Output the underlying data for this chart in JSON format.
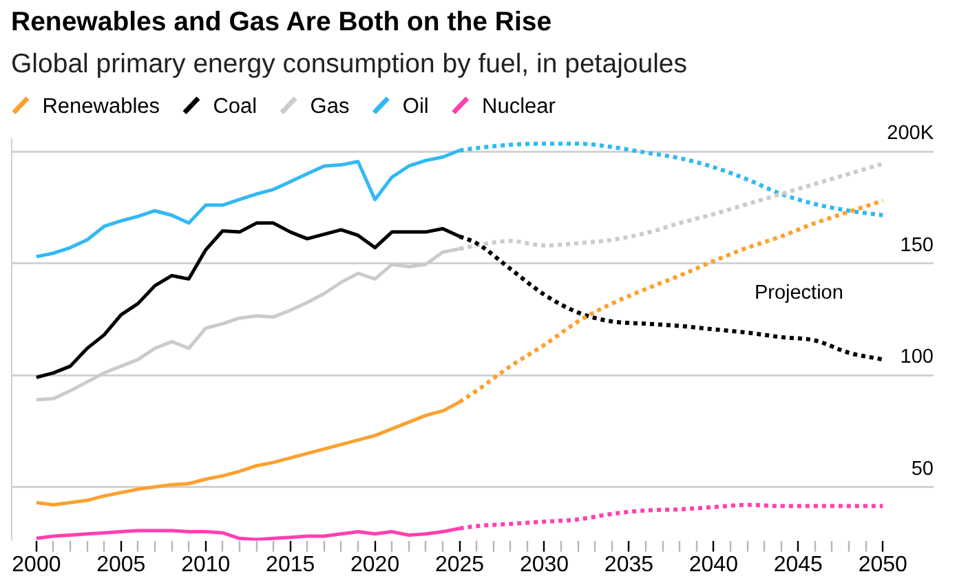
{
  "chart_data": {
    "type": "line",
    "title": "Renewables and Gas Are Both on the Rise",
    "subtitle": "Global primary energy consumption by fuel, in petajoules",
    "xlim": [
      1998.5,
      2053
    ],
    "xticks": [
      2000,
      {
        "value": 2001,
        "label": null
      },
      {
        "value": 2002,
        "label": null
      },
      {
        "value": 2003,
        "label": null
      },
      {
        "value": 2004,
        "label": null
      },
      2005,
      {
        "value": 2006,
        "label": null
      },
      {
        "value": 2007,
        "label": null
      },
      {
        "value": 2008,
        "label": null
      },
      {
        "value": 2009,
        "label": null
      },
      2010,
      {
        "value": 2011,
        "label": null
      },
      {
        "value": 2012,
        "label": null
      },
      {
        "value": 2013,
        "label": null
      },
      {
        "value": 2014,
        "label": null
      },
      2015,
      {
        "value": 2016,
        "label": null
      },
      {
        "value": 2017,
        "label": null
      },
      {
        "value": 2018,
        "label": null
      },
      {
        "value": 2019,
        "label": null
      },
      2020,
      {
        "value": 2021,
        "label": null
      },
      {
        "value": 2022,
        "label": null
      },
      {
        "value": 2023,
        "label": null
      },
      {
        "value": 2024,
        "label": null
      },
      2025,
      {
        "value": 2026,
        "label": null
      },
      {
        "value": 2027,
        "label": null
      },
      {
        "value": 2028,
        "label": null
      },
      {
        "value": 2029,
        "label": null
      },
      2030,
      {
        "value": 2031,
        "label": null
      },
      {
        "value": 2032,
        "label": null
      },
      {
        "value": 2033,
        "label": null
      },
      {
        "value": 2034,
        "label": null
      },
      2035,
      {
        "value": 2036,
        "label": null
      },
      {
        "value": 2037,
        "label": null
      },
      {
        "value": 2038,
        "label": null
      },
      {
        "value": 2039,
        "label": null
      },
      2040,
      {
        "value": 2041,
        "label": null
      },
      {
        "value": 2042,
        "label": null
      },
      {
        "value": 2043,
        "label": null
      },
      {
        "value": 2044,
        "label": null
      },
      2045,
      {
        "value": 2046,
        "label": null
      },
      {
        "value": 2047,
        "label": null
      },
      {
        "value": 2048,
        "label": null
      },
      {
        "value": 2049,
        "label": null
      },
      2050
    ],
    "ylim": [
      26,
      206
    ],
    "yticks": [
      50,
      100,
      150,
      {
        "value": 200,
        "label": "200K"
      }
    ],
    "grid": "y",
    "legend": "top left",
    "marker": "none",
    "annotations": [
      "Projection"
    ],
    "series": [
      {
        "name": "Renewables",
        "color": "#fca130",
        "line_style": "solid",
        "x": [
          2000,
          2001,
          2002,
          2003,
          2004,
          2005,
          2006,
          2007,
          2008,
          2009,
          2010,
          2011,
          2012,
          2013,
          2014,
          2015,
          2016,
          2017,
          2018,
          2019,
          2020,
          2021,
          2022,
          2023,
          2024,
          2025
        ],
        "values": [
          43,
          42,
          43,
          44,
          46,
          47.5,
          49,
          50,
          51,
          51.5,
          53.5,
          55,
          57,
          59.5,
          61,
          63,
          65,
          67,
          69,
          71,
          73,
          76,
          79,
          82,
          84,
          88
        ]
      },
      {
        "name": "Coal",
        "color": "#000000",
        "line_style": "solid",
        "x": [
          2000,
          2001,
          2002,
          2003,
          2004,
          2005,
          2006,
          2007,
          2008,
          2009,
          2010,
          2011,
          2012,
          2013,
          2014,
          2015,
          2016,
          2017,
          2018,
          2019,
          2020,
          2021,
          2022,
          2023,
          2024,
          2025
        ],
        "values": [
          99,
          101,
          104,
          112,
          118,
          127,
          132,
          140,
          144.5,
          143,
          156,
          164.5,
          164,
          168,
          168,
          164,
          161,
          163,
          165,
          162.5,
          157,
          164,
          164,
          164,
          165.5,
          162
        ]
      },
      {
        "name": "Gas",
        "color": "#cbcbcb",
        "line_style": "solid",
        "x": [
          2000,
          2001,
          2002,
          2003,
          2004,
          2005,
          2006,
          2007,
          2008,
          2009,
          2010,
          2011,
          2012,
          2013,
          2014,
          2015,
          2016,
          2017,
          2018,
          2019,
          2020,
          2021,
          2022,
          2023,
          2024,
          2025
        ],
        "values": [
          89,
          89.5,
          93,
          97,
          101,
          104,
          107,
          112,
          115,
          112,
          121,
          123,
          125.5,
          126.5,
          126,
          129,
          132.5,
          136.5,
          141.5,
          145.5,
          143,
          149.5,
          148.5,
          149.5,
          155,
          156.5
        ]
      },
      {
        "name": "Oil",
        "color": "#31b9f3",
        "line_style": "solid",
        "x": [
          2000,
          2001,
          2002,
          2003,
          2004,
          2005,
          2006,
          2007,
          2008,
          2009,
          2010,
          2011,
          2012,
          2013,
          2014,
          2015,
          2016,
          2017,
          2018,
          2019,
          2020,
          2021,
          2022,
          2023,
          2024,
          2025
        ],
        "values": [
          153,
          154.5,
          157,
          160.5,
          166.5,
          169,
          171,
          173.5,
          171.5,
          168,
          176,
          176,
          178.5,
          181,
          183,
          186.5,
          190,
          193.5,
          194,
          195.5,
          178.5,
          188.5,
          193.5,
          196,
          197.5,
          200.5
        ]
      },
      {
        "name": "Nuclear",
        "color": "#ff40b0",
        "line_style": "solid",
        "x": [
          2000,
          2001,
          2002,
          2003,
          2004,
          2005,
          2006,
          2007,
          2008,
          2009,
          2010,
          2011,
          2012,
          2013,
          2014,
          2015,
          2016,
          2017,
          2018,
          2019,
          2020,
          2021,
          2022,
          2023,
          2024,
          2025
        ],
        "values": [
          27,
          28,
          28.5,
          29,
          29.5,
          30,
          30.5,
          30.5,
          30.5,
          30,
          30,
          29.5,
          27,
          26.5,
          27,
          27.5,
          28,
          28,
          29,
          30,
          29,
          30,
          28.5,
          29,
          30,
          31.5
        ]
      },
      {
        "color": "#fca130",
        "line_style": "dotted",
        "x": [
          2025,
          2026,
          2028,
          2030,
          2032,
          2034,
          2036,
          2038,
          2040,
          2042,
          2044,
          2046,
          2048,
          2050
        ],
        "values": [
          88,
          93,
          104,
          113.5,
          124,
          132,
          138.5,
          144.5,
          151,
          157,
          162,
          168,
          173,
          178
        ]
      },
      {
        "color": "#000000",
        "line_style": "dotted",
        "x": [
          2025,
          2026,
          2028,
          2030,
          2032,
          2034,
          2036,
          2038,
          2040,
          2042,
          2044,
          2046,
          2048,
          2050
        ],
        "values": [
          162,
          159,
          147.5,
          136,
          128,
          124,
          123,
          122,
          120.5,
          119,
          117,
          115.5,
          110,
          107
        ]
      },
      {
        "color": "#cbcbcb",
        "line_style": "dotted",
        "x": [
          2025,
          2026,
          2028,
          2030,
          2032,
          2034,
          2036,
          2038,
          2040,
          2042,
          2044,
          2046,
          2048,
          2050
        ],
        "values": [
          156.5,
          158,
          160,
          158,
          159,
          160.5,
          163.5,
          168,
          172,
          176.5,
          181,
          185.5,
          190,
          194.5
        ]
      },
      {
        "color": "#31b9f3",
        "line_style": "dotted",
        "x": [
          2025,
          2026,
          2028,
          2030,
          2032,
          2034,
          2036,
          2038,
          2040,
          2042,
          2044,
          2046,
          2048,
          2050
        ],
        "values": [
          200.5,
          201.5,
          203,
          203.5,
          203.5,
          202,
          199.5,
          197,
          193,
          187.5,
          181,
          176.5,
          173.5,
          171.5
        ]
      },
      {
        "color": "#ff40b0",
        "line_style": "dotted",
        "x": [
          2025,
          2026,
          2028,
          2030,
          2032,
          2034,
          2036,
          2038,
          2040,
          2042,
          2044,
          2046,
          2048,
          2050
        ],
        "values": [
          31.5,
          32.5,
          33.5,
          34.5,
          35.5,
          38,
          39.5,
          40,
          41,
          42,
          41.5,
          41.5,
          41.5,
          41.5
        ]
      }
    ]
  }
}
